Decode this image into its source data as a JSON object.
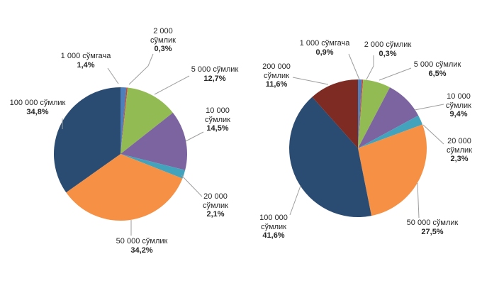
{
  "page": {
    "background_color": "#ffffff",
    "text_color": "#262626",
    "leader_line_color": "#9e9e9e"
  },
  "chart_data": [
    {
      "type": "pie",
      "title": "",
      "legend": "none",
      "start_angle_deg": 0,
      "direction": "clockwise",
      "categories": [
        "1 000 сўмгача",
        "2 000 сўмлик",
        "5 000 сўмлик",
        "10 000 сўмлик",
        "20 000 сўмлик",
        "50 000 сўмлик",
        "100 000 сўмлик"
      ],
      "values": [
        1.4,
        0.3,
        12.7,
        14.5,
        2.1,
        34.2,
        34.8
      ],
      "percent_labels": [
        "1,4%",
        "0,3%",
        "12,7%",
        "14,5%",
        "2,1%",
        "34,2%",
        "34,8%"
      ],
      "colors": [
        "#4E7FBA",
        "#BE4B48",
        "#93BB53",
        "#7C64A0",
        "#44A3BC",
        "#F59044",
        "#2B4C72"
      ]
    },
    {
      "type": "pie",
      "title": "",
      "legend": "none",
      "start_angle_deg": 0,
      "direction": "clockwise",
      "categories": [
        "1 000 сўмгача",
        "2 000 сўмлик",
        "5 000 сўмлик",
        "10 000 сўмлик",
        "20 000 сўмлик",
        "50 000 сўмлик",
        "100 000 сўмлик",
        "200 000 сўмлик"
      ],
      "values": [
        0.9,
        0.3,
        6.5,
        9.4,
        2.3,
        27.5,
        41.6,
        11.6
      ],
      "percent_labels": [
        "0,9%",
        "0,3%",
        "6,5%",
        "9,4%",
        "2,3%",
        "27,5%",
        "41,6%",
        "11,6%"
      ],
      "colors": [
        "#4E7FBA",
        "#BE4B48",
        "#93BB53",
        "#7C64A0",
        "#44A3BC",
        "#F59044",
        "#2B4C72",
        "#7E2B24"
      ]
    }
  ]
}
